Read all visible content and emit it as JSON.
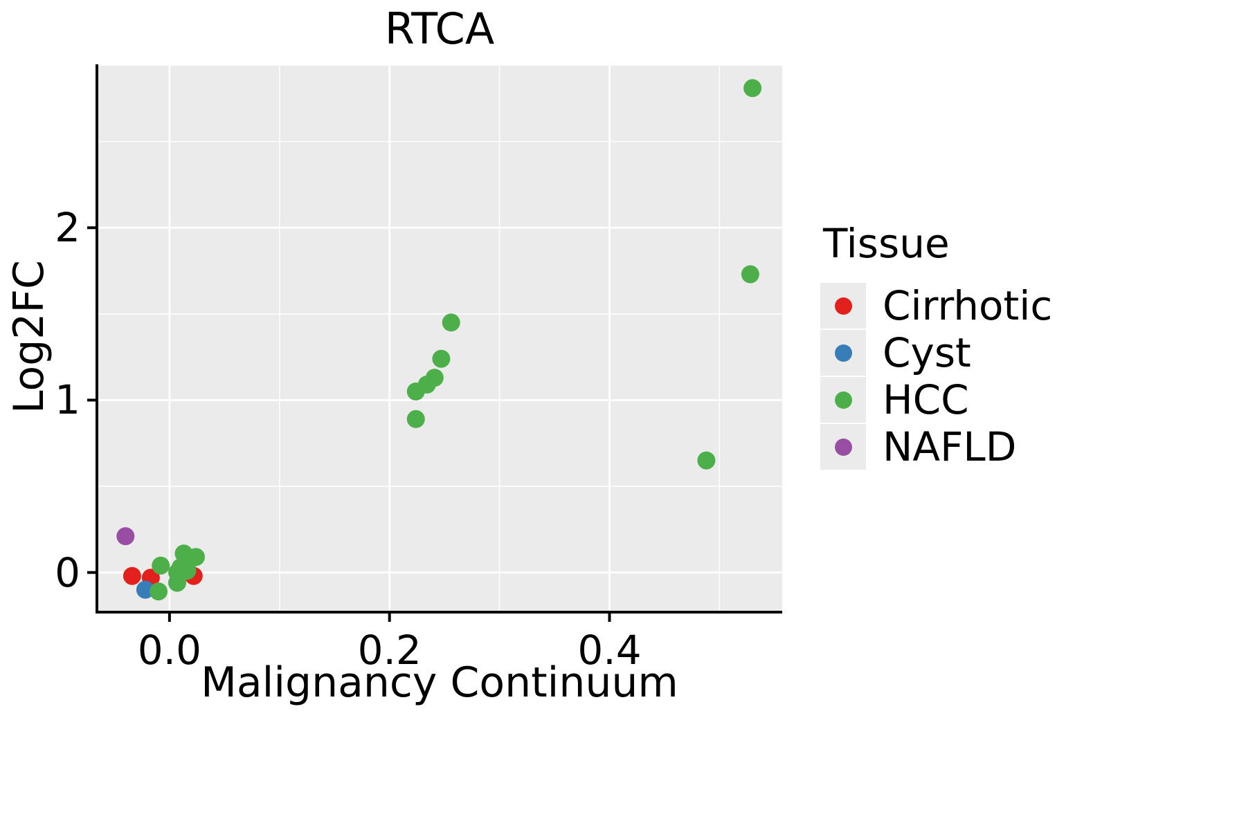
{
  "chart_data": {
    "type": "scatter",
    "title": "RTCA",
    "xlabel": "Malignancy Continuum",
    "ylabel": "Log2FC",
    "xlim": [
      -0.066,
      0.557
    ],
    "ylim": [
      -0.23,
      2.94
    ],
    "x_ticks": [
      0.0,
      0.2,
      0.4
    ],
    "x_tick_labels": [
      "0.0",
      "0.2",
      "0.4"
    ],
    "x_minor_ticks": [
      0.1,
      0.3,
      0.5
    ],
    "y_ticks": [
      0,
      1,
      2
    ],
    "y_tick_labels": [
      "0",
      "1",
      "2"
    ],
    "y_minor_ticks": [
      0.5,
      1.5,
      2.5
    ],
    "grid": true,
    "panel_bg": "#EBEBEB",
    "gridline_color": "#FFFFFF",
    "axis_color": "#000000",
    "legend_title": "Tissue",
    "legend_position": "right",
    "point_radius": 13,
    "series": [
      {
        "name": "Cirrhotic",
        "color": "#E2201C",
        "points": [
          [
            -0.034,
            -0.02
          ],
          [
            -0.017,
            -0.03
          ],
          [
            0.016,
            0.09
          ],
          [
            0.022,
            -0.02
          ]
        ]
      },
      {
        "name": "Cyst",
        "color": "#377EB8",
        "points": [
          [
            -0.022,
            -0.1
          ]
        ]
      },
      {
        "name": "HCC",
        "color": "#4DAF4A",
        "points": [
          [
            0.53,
            2.81
          ],
          [
            0.528,
            1.73
          ],
          [
            0.256,
            1.45
          ],
          [
            0.247,
            1.24
          ],
          [
            0.241,
            1.13
          ],
          [
            0.234,
            1.09
          ],
          [
            0.224,
            1.05
          ],
          [
            0.224,
            0.89
          ],
          [
            0.488,
            0.65
          ],
          [
            -0.008,
            0.04
          ],
          [
            -0.01,
            -0.11
          ],
          [
            0.007,
            -0.06
          ],
          [
            0.013,
            0.11
          ],
          [
            0.018,
            0.07
          ],
          [
            0.01,
            0.03
          ],
          [
            0.007,
            0.0
          ],
          [
            0.016,
            0.01
          ],
          [
            0.024,
            0.09
          ]
        ]
      },
      {
        "name": "NAFLD",
        "color": "#984EA3",
        "points": [
          [
            -0.04,
            0.21
          ]
        ]
      }
    ]
  }
}
